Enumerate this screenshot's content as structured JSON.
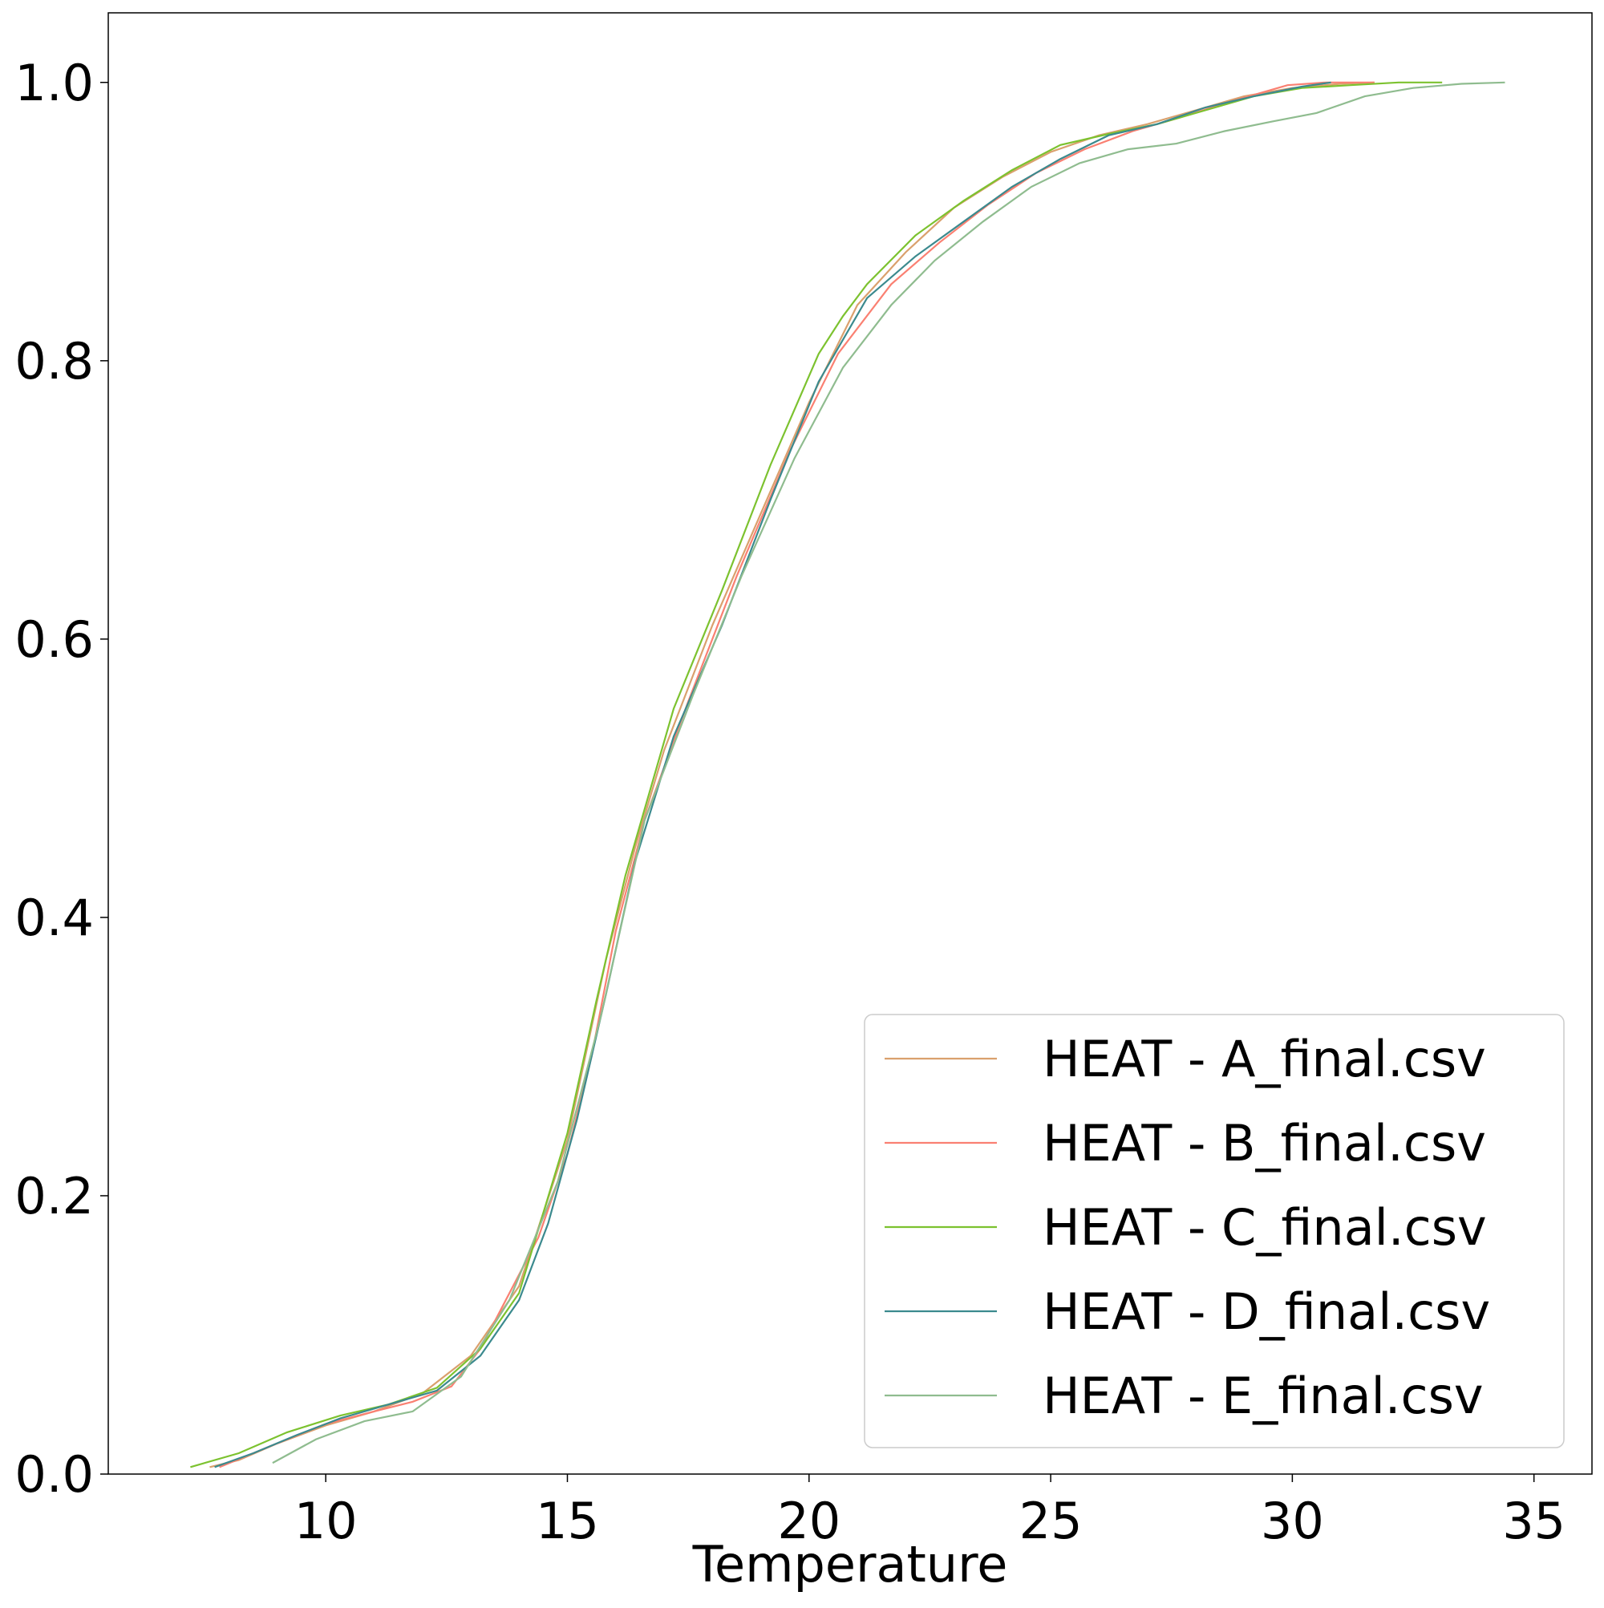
{
  "chart_data": {
    "type": "line",
    "title": "",
    "xlabel": "Temperature",
    "ylabel": "",
    "xlim": [
      5.5,
      36.2
    ],
    "ylim": [
      0.0,
      1.05
    ],
    "xticks": [
      10,
      15,
      20,
      25,
      30,
      35
    ],
    "xtick_labels": [
      "10",
      "15",
      "20",
      "25",
      "30",
      "35"
    ],
    "yticks": [
      0.0,
      0.2,
      0.4,
      0.6,
      0.8,
      1.0
    ],
    "ytick_labels": [
      "0.0",
      "0.2",
      "0.4",
      "0.6",
      "0.8",
      "1.0"
    ],
    "grid": false,
    "legend_position": "lower-right",
    "series": [
      {
        "name": "HEAT - A_final.csv",
        "color": "#daa06d",
        "x": [
          7.6,
          8.2,
          9.0,
          10.0,
          11.0,
          12.0,
          13.0,
          14.0,
          15.0,
          15.8,
          16.4,
          17.0,
          18.0,
          19.0,
          20.0,
          21.0,
          22.0,
          23.0,
          24.0,
          25.0,
          26.0,
          27.0,
          28.0,
          29.0,
          30.0,
          31.0,
          31.7
        ],
        "y": [
          0.005,
          0.01,
          0.022,
          0.035,
          0.045,
          0.058,
          0.085,
          0.135,
          0.24,
          0.37,
          0.45,
          0.52,
          0.61,
          0.69,
          0.77,
          0.84,
          0.878,
          0.91,
          0.932,
          0.95,
          0.962,
          0.97,
          0.98,
          0.99,
          0.996,
          0.999,
          1.0
        ]
      },
      {
        "name": "HEAT - B_final.csv",
        "color": "#fa8072",
        "x": [
          7.8,
          8.5,
          9.2,
          10.0,
          11.0,
          11.8,
          12.6,
          13.2,
          13.8,
          14.4,
          15.0,
          15.5,
          16.0,
          16.6,
          17.5,
          18.5,
          19.6,
          20.6,
          21.7,
          22.7,
          23.7,
          24.7,
          25.7,
          26.7,
          27.7,
          28.7,
          29.9,
          30.7,
          31.7
        ],
        "y": [
          0.005,
          0.015,
          0.025,
          0.036,
          0.045,
          0.052,
          0.063,
          0.09,
          0.13,
          0.17,
          0.23,
          0.3,
          0.39,
          0.47,
          0.555,
          0.645,
          0.735,
          0.805,
          0.855,
          0.885,
          0.912,
          0.935,
          0.952,
          0.965,
          0.975,
          0.986,
          0.998,
          1.0,
          1.0
        ]
      },
      {
        "name": "HEAT - C_final.csv",
        "color": "#7cc22f",
        "x": [
          7.2,
          8.2,
          9.2,
          10.3,
          11.3,
          12.3,
          13.2,
          14.0,
          15.0,
          15.6,
          16.2,
          17.2,
          18.2,
          19.2,
          20.2,
          20.7,
          21.2,
          22.2,
          23.2,
          24.2,
          25.2,
          26.2,
          27.2,
          28.2,
          29.2,
          30.2,
          31.2,
          32.2,
          33.1
        ],
        "y": [
          0.005,
          0.015,
          0.03,
          0.042,
          0.05,
          0.062,
          0.09,
          0.13,
          0.245,
          0.34,
          0.43,
          0.55,
          0.635,
          0.725,
          0.805,
          0.832,
          0.855,
          0.89,
          0.915,
          0.937,
          0.955,
          0.963,
          0.97,
          0.98,
          0.99,
          0.996,
          0.998,
          1.0,
          1.0
        ]
      },
      {
        "name": "HEAT - D_final.csv",
        "color": "#3b8a8e",
        "x": [
          7.7,
          8.5,
          9.4,
          10.3,
          11.3,
          12.3,
          13.2,
          14.0,
          14.6,
          15.2,
          15.8,
          16.4,
          17.2,
          18.2,
          19.2,
          20.2,
          21.2,
          22.2,
          23.2,
          24.2,
          25.2,
          26.2,
          27.2,
          28.2,
          29.2,
          30.2,
          30.8
        ],
        "y": [
          0.005,
          0.015,
          0.028,
          0.04,
          0.05,
          0.06,
          0.085,
          0.125,
          0.18,
          0.255,
          0.345,
          0.44,
          0.53,
          0.61,
          0.7,
          0.785,
          0.845,
          0.875,
          0.9,
          0.925,
          0.945,
          0.962,
          0.97,
          0.982,
          0.99,
          0.997,
          1.0
        ]
      },
      {
        "name": "HEAT - E_final.csv",
        "color": "#8fbc8f",
        "x": [
          8.9,
          9.8,
          10.8,
          11.8,
          12.8,
          13.8,
          14.8,
          15.7,
          16.6,
          17.6,
          18.6,
          19.7,
          20.7,
          21.7,
          22.6,
          23.6,
          24.6,
          25.6,
          26.6,
          27.6,
          28.6,
          29.6,
          30.5,
          31.5,
          32.5,
          33.5,
          34.4
        ],
        "y": [
          0.008,
          0.025,
          0.038,
          0.045,
          0.07,
          0.125,
          0.21,
          0.33,
          0.47,
          0.56,
          0.645,
          0.73,
          0.795,
          0.84,
          0.872,
          0.9,
          0.925,
          0.942,
          0.952,
          0.956,
          0.965,
          0.972,
          0.978,
          0.99,
          0.996,
          0.999,
          1.0
        ]
      }
    ]
  }
}
